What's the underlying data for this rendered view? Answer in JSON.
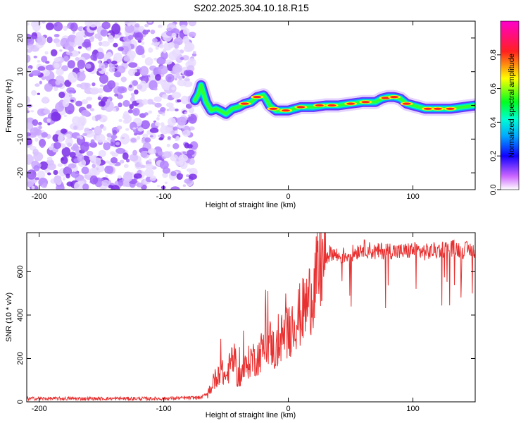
{
  "title": "S202.2025.304.10.18.R15",
  "chart_data": [
    {
      "type": "heatmap",
      "xlabel": "Height of straight line (km)",
      "ylabel": "Frequency (Hz)",
      "xlim": [
        -210,
        150
      ],
      "ylim": [
        -25,
        25
      ],
      "xticks": [
        -200,
        -100,
        0,
        100
      ],
      "yticks": [
        -20,
        -10,
        0,
        10,
        20
      ],
      "noise_region_end_km": -75,
      "ridge_trace": {
        "x": [
          -75,
          -72,
          -70,
          -66,
          -62,
          -58,
          -55,
          -50,
          -45,
          -40,
          -35,
          -30,
          -25,
          -20,
          -18,
          -15,
          -10,
          -5,
          0,
          5,
          10,
          20,
          30,
          40,
          50,
          60,
          65,
          70,
          75,
          80,
          85,
          90,
          95,
          100,
          105,
          110,
          120,
          130,
          140,
          150
        ],
        "y": [
          1.5,
          3.5,
          6,
          1,
          -1.5,
          -1,
          -1.5,
          -2.5,
          -1,
          -0.5,
          0.5,
          1,
          2.5,
          3,
          2,
          0,
          -1.5,
          -1.5,
          -1.5,
          -1,
          -0.5,
          -0.5,
          0,
          0,
          0.5,
          1,
          1,
          1,
          2,
          2.5,
          2.5,
          2,
          0.5,
          0,
          -0.5,
          -1,
          -1,
          -1,
          -0.5,
          0
        ]
      },
      "colorbar": {
        "label": "Normalized spectral amplitude",
        "range": [
          0,
          1
        ],
        "ticks": [
          "0.0",
          "0.2",
          "0.4",
          "0.6",
          "0.8"
        ]
      }
    },
    {
      "type": "line",
      "xlabel": "Height of straight line (km)",
      "ylabel": "SNR (10 * v/v)",
      "xlim": [
        -210,
        150
      ],
      "ylim": [
        0,
        780
      ],
      "xticks": [
        -200,
        -100,
        0,
        100
      ],
      "yticks": [
        0,
        200,
        400,
        600
      ],
      "color": "#e83030",
      "series": [
        {
          "name": "SNR",
          "x": [
            -210,
            -150,
            -100,
            -70,
            -65,
            -60,
            -55,
            -50,
            -45,
            -40,
            -35,
            -30,
            -25,
            -20,
            -15,
            -10,
            -5,
            0,
            5,
            10,
            15,
            20,
            25,
            30,
            35,
            40,
            50,
            60,
            70,
            80,
            90,
            100,
            110,
            120,
            130,
            140,
            150
          ],
          "y": [
            15,
            15,
            15,
            20,
            40,
            90,
            150,
            110,
            200,
            110,
            150,
            200,
            200,
            250,
            280,
            220,
            300,
            320,
            380,
            400,
            450,
            520,
            600,
            670,
            690,
            670,
            680,
            710,
            690,
            700,
            690,
            700,
            690,
            700,
            710,
            700,
            700
          ]
        }
      ]
    }
  ]
}
